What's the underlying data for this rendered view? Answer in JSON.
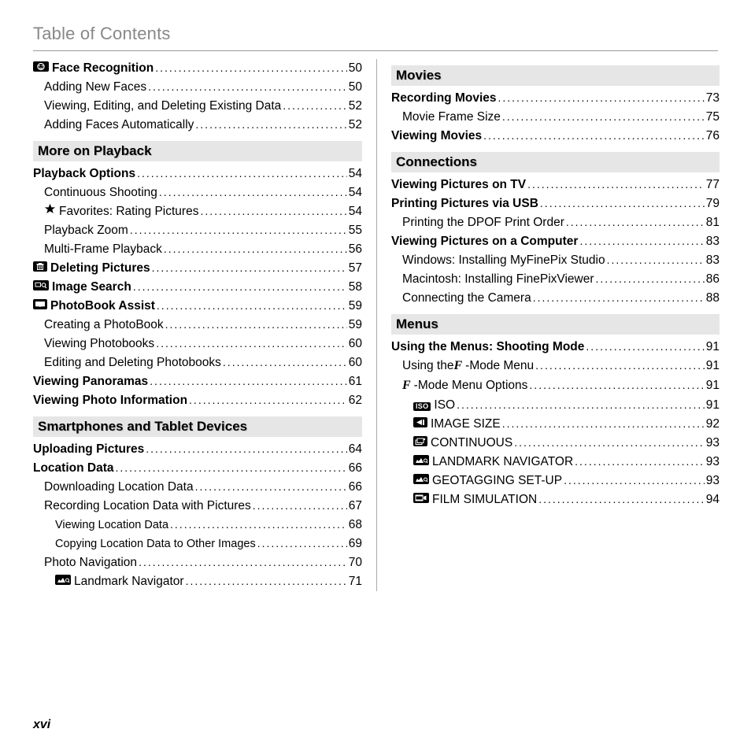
{
  "title": "Table of Contents",
  "page_number": "xvi",
  "left": {
    "pre_section": [
      {
        "icon": "face-icon",
        "label": "Face Recognition",
        "page": "50",
        "bold": true,
        "indent": 0
      },
      {
        "label": "Adding New Faces",
        "page": "50",
        "indent": 1
      },
      {
        "label": "Viewing, Editing, and Deleting Existing Data",
        "page": "52",
        "indent": 1
      },
      {
        "label": "Adding Faces Automatically",
        "page": "52",
        "indent": 1
      }
    ],
    "sections": [
      {
        "heading": "More on Playback",
        "rows": [
          {
            "label": "Playback Options",
            "page": "54",
            "bold": true,
            "indent": 0
          },
          {
            "label": "Continuous Shooting",
            "page": "54",
            "indent": 1
          },
          {
            "icon": "star-icon",
            "label": "Favorites: Rating Pictures",
            "page": "54",
            "indent": 1
          },
          {
            "label": "Playback Zoom",
            "page": "55",
            "indent": 1
          },
          {
            "label": "Multi-Frame Playback",
            "page": "56",
            "indent": 1
          },
          {
            "icon": "trash-icon",
            "label": "Deleting Pictures",
            "page": "57",
            "bold": true,
            "indent": 0
          },
          {
            "icon": "search-icon",
            "label": "Image Search",
            "page": "58",
            "bold": true,
            "indent": 0
          },
          {
            "icon": "book-icon",
            "label": "PhotoBook Assist",
            "page": "59",
            "bold": true,
            "indent": 0
          },
          {
            "label": "Creating a PhotoBook",
            "page": "59",
            "indent": 1
          },
          {
            "label": "Viewing Photobooks",
            "page": "60",
            "indent": 1
          },
          {
            "label": "Editing and Deleting Photobooks",
            "page": "60",
            "indent": 1
          },
          {
            "label": "Viewing Panoramas",
            "page": "61",
            "bold": true,
            "indent": 0
          },
          {
            "label": "Viewing Photo Information",
            "page": "62",
            "bold": true,
            "indent": 0
          }
        ]
      },
      {
        "heading": "Smartphones and Tablet Devices",
        "rows": [
          {
            "label": "Uploading Pictures",
            "page": "64",
            "bold": true,
            "indent": 0
          },
          {
            "label": "Location Data",
            "page": "66",
            "bold": true,
            "indent": 0
          },
          {
            "label": "Downloading Location Data",
            "page": "66",
            "indent": 1
          },
          {
            "label": "Recording Location Data with Pictures",
            "page": "67",
            "indent": 1
          },
          {
            "label": "Viewing Location Data",
            "page": "68",
            "indent": 2,
            "sub3": true
          },
          {
            "label": "Copying Location Data to Other Images",
            "page": "69",
            "indent": 2,
            "sub3": true
          },
          {
            "label": "Photo Navigation",
            "page": "70",
            "indent": 1
          },
          {
            "icon": "landmark-icon",
            "label": "Landmark Navigator",
            "page": "71",
            "indent": 2
          }
        ]
      }
    ]
  },
  "right": {
    "sections": [
      {
        "heading": "Movies",
        "rows": [
          {
            "label": "Recording Movies",
            "page": "73",
            "bold": true,
            "indent": 0
          },
          {
            "label": "Movie Frame Size",
            "page": "75",
            "indent": 1
          },
          {
            "label": "Viewing Movies",
            "page": "76",
            "bold": true,
            "indent": 0
          }
        ]
      },
      {
        "heading": "Connections",
        "rows": [
          {
            "label": "Viewing Pictures on TV",
            "page": "77",
            "bold": true,
            "indent": 0
          },
          {
            "label": "Printing Pictures via USB",
            "page": "79",
            "bold": true,
            "indent": 0
          },
          {
            "label": "Printing the DPOF Print Order",
            "page": "81",
            "indent": 1
          },
          {
            "label": "Viewing Pictures on a Computer",
            "page": "83",
            "bold": true,
            "indent": 0
          },
          {
            "label": "Windows: Installing MyFinePix Studio",
            "page": "83",
            "indent": 1
          },
          {
            "label": "Macintosh: Installing FinePixViewer",
            "page": "86",
            "indent": 1
          },
          {
            "label": "Connecting the Camera",
            "page": "88",
            "indent": 1
          }
        ]
      },
      {
        "heading": "Menus",
        "rows": [
          {
            "label": "Using the Menus: Shooting Mode",
            "page": "91",
            "bold": true,
            "indent": 0
          },
          {
            "icon": "f-icon",
            "label_pre": "Using the ",
            "label": "-Mode Menu",
            "page": "91",
            "indent": 1
          },
          {
            "icon": "f-icon",
            "label": "-Mode Menu Options",
            "page": "91",
            "indent": 1
          },
          {
            "icon": "iso-icon",
            "label": "ISO",
            "page": "91",
            "indent": 2
          },
          {
            "icon": "size-icon",
            "label": "IMAGE SIZE",
            "page": "92",
            "indent": 2
          },
          {
            "icon": "continuous-icon",
            "label": "CONTINUOUS",
            "page": "93",
            "indent": 2
          },
          {
            "icon": "landmark-icon",
            "label": "LANDMARK NAVIGATOR",
            "page": "93",
            "indent": 2
          },
          {
            "icon": "geotag-icon",
            "label": "GEOTAGGING SET-UP",
            "page": "93",
            "indent": 2
          },
          {
            "icon": "film-icon",
            "label": "FILM SIMULATION",
            "page": "94",
            "indent": 2
          }
        ]
      }
    ]
  }
}
